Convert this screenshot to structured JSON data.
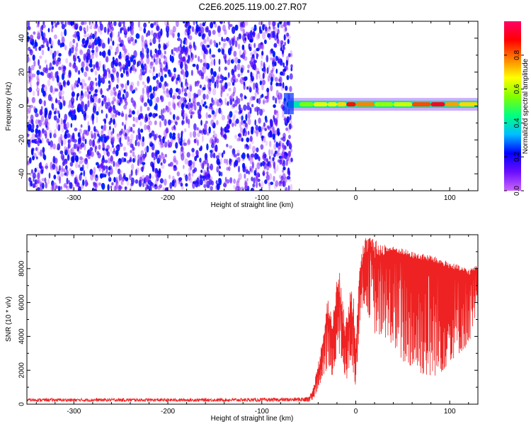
{
  "title": "C2E6.2025.119.00.27.R07",
  "colorbar": {
    "label": "Normalized spectral amplitude",
    "ticks": [
      "0.0",
      "0.2",
      "0.4",
      "0.6",
      "0.8"
    ],
    "tick_values": [
      0.0,
      0.2,
      0.4,
      0.6,
      0.8
    ],
    "range": [
      0,
      1
    ],
    "colors": [
      "#cc66ff",
      "#6a0dff",
      "#0000ff",
      "#00bfff",
      "#00ff80",
      "#80ff00",
      "#ffff00",
      "#ff8000",
      "#ff0000",
      "#ff0066"
    ]
  },
  "chart_data": [
    {
      "type": "heatmap",
      "xlabel": "Height of straight line (km)",
      "ylabel": "Frequency (Hz)",
      "xlim": [
        -350,
        130
      ],
      "ylim": [
        -50,
        50
      ],
      "x_ticks": [
        -300,
        -200,
        -100,
        0,
        100
      ],
      "y_ticks": [
        -40,
        -20,
        0,
        20,
        40
      ],
      "x_tick_labels": [
        "-300",
        "-200",
        "-100",
        "0",
        "100"
      ],
      "y_tick_labels": [
        "-40",
        "-20",
        "0",
        "20",
        "40"
      ],
      "noise_region_x": [
        -350,
        -68
      ],
      "noise_amplitude": [
        0.0,
        0.25
      ],
      "signal_line": {
        "frequency": 1,
        "x": [
          -72,
          -60,
          -45,
          -30,
          -20,
          -10,
          0,
          20,
          40,
          60,
          80,
          95,
          110,
          130
        ],
        "amplitude": [
          0.3,
          0.5,
          0.6,
          0.7,
          0.6,
          0.8,
          0.95,
          0.6,
          0.55,
          0.7,
          0.95,
          0.9,
          0.6,
          0.8
        ]
      }
    },
    {
      "type": "line",
      "xlabel": "Height of straight line (km)",
      "ylabel": "SNR (10 * v/v)",
      "xlim": [
        -350,
        130
      ],
      "ylim": [
        0,
        10000
      ],
      "x_ticks": [
        -300,
        -200,
        -100,
        0,
        100
      ],
      "y_ticks": [
        0,
        2000,
        4000,
        6000,
        8000
      ],
      "x_tick_labels": [
        "-300",
        "-200",
        "-100",
        "0",
        "100"
      ],
      "y_tick_labels": [
        "0",
        "2000",
        "4000",
        "6000",
        "8000"
      ],
      "series": [
        {
          "color": "#ee2222",
          "x": [
            -350,
            -300,
            -250,
            -200,
            -150,
            -100,
            -70,
            -50,
            -45,
            -40,
            -35,
            -30,
            -25,
            -20,
            -15,
            -10,
            -5,
            0,
            5,
            10,
            15,
            20,
            30,
            40,
            50,
            60,
            70,
            80,
            90,
            100,
            110,
            120,
            130
          ],
          "y": [
            250,
            240,
            250,
            240,
            250,
            260,
            270,
            350,
            800,
            1800,
            3500,
            5200,
            4000,
            6500,
            5500,
            3000,
            6000,
            3000,
            8000,
            8400,
            9500,
            8500,
            8800,
            9000,
            8800,
            8600,
            8500,
            8400,
            8200,
            8000,
            7800,
            7600,
            8000
          ],
          "envelope_low": [
            150,
            150,
            150,
            150,
            150,
            150,
            150,
            150,
            300,
            900,
            1500,
            2200,
            1600,
            3000,
            2600,
            1200,
            2800,
            900,
            5500,
            6000,
            5000,
            4200,
            4000,
            3500,
            2500,
            2200,
            1800,
            1600,
            1800,
            2500,
            3000,
            3500,
            5500
          ],
          "envelope_high": [
            350,
            340,
            350,
            340,
            350,
            360,
            380,
            450,
            1000,
            2500,
            4000,
            6500,
            5000,
            7500,
            8000,
            5000,
            7800,
            5500,
            9000,
            9900,
            9900,
            9700,
            9500,
            9300,
            9200,
            9000,
            8900,
            8800,
            8600,
            8400,
            8200,
            8000,
            8200
          ]
        }
      ]
    }
  ]
}
